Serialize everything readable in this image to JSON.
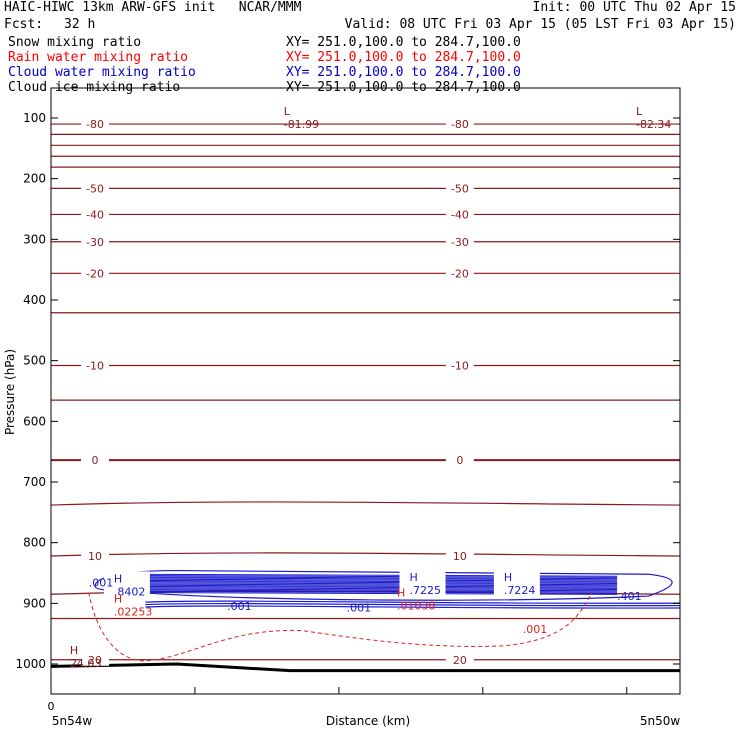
{
  "header": {
    "title_left": "HAIC-HIWC 13km ARW-GFS init   NCAR/MMM",
    "fcst_label": "Fcst:",
    "fcst_value": "32 h",
    "init": "Init: 00 UTC Thu 02 Apr 15",
    "valid": "Valid: 08 UTC Fri 03 Apr 15 (05 LST Fri 03 Apr 15)"
  },
  "fields": [
    {
      "name": "Snow mixing ratio",
      "xy": "XY= 251.0,100.0 to 284.7,100.0",
      "color": "#000000"
    },
    {
      "name": "Rain water mixing ratio",
      "xy": "XY= 251.0,100.0 to 284.7,100.0",
      "color": "#ff0000"
    },
    {
      "name": "Cloud water mixing ratio",
      "xy": "XY= 251.0,100.0 to 284.7,100.0",
      "color": "#0000c8"
    },
    {
      "name": "Cloud ice mixing ratio",
      "xy": "XY= 251.0,100.0 to 284.7,100.0",
      "color": "#000000"
    }
  ],
  "colors": {
    "temp": "#8b1a1a",
    "cloud": "#1a1acd",
    "rain": "#e02020",
    "ground": "#000000"
  },
  "chart_data": {
    "type": "line",
    "ylabel": "Pressure (hPa)",
    "xlabel": "Distance (km)",
    "x_start_label": "5n54w",
    "x_end_label": "5n50w",
    "x_zero_label": "0",
    "y_ticks": [
      100,
      200,
      300,
      400,
      500,
      600,
      700,
      800,
      900,
      1000
    ],
    "ylim": [
      1050,
      50
    ],
    "xlim": [
      0,
      1
    ],
    "y_scale": "linear",
    "grid": false,
    "isotherms": [
      {
        "label": "-80",
        "p": 110
      },
      {
        "label": "",
        "p": 127
      },
      {
        "label": "",
        "p": 145
      },
      {
        "label": "",
        "p": 163
      },
      {
        "label": "",
        "p": 181
      },
      {
        "label": "-50",
        "p": 216
      },
      {
        "label": "-40",
        "p": 259
      },
      {
        "label": "-30",
        "p": 304
      },
      {
        "label": "-20",
        "p": 356
      },
      {
        "label": "",
        "p": 421
      },
      {
        "label": "-10",
        "p": 508
      },
      {
        "label": "",
        "p": 565
      },
      {
        "label": "0",
        "p": 664
      },
      {
        "label": "",
        "p": 738
      },
      {
        "label": "10",
        "p": 822
      },
      {
        "label": "",
        "p": 885
      },
      {
        "label": "",
        "p": 925
      },
      {
        "label": "20",
        "p": 993
      }
    ],
    "extrema": [
      {
        "kind": "L",
        "value": "-81.99",
        "x": 0.37,
        "p": 102,
        "color": "temp"
      },
      {
        "kind": "L",
        "value": "-82.34",
        "x": 0.93,
        "p": 102,
        "color": "temp"
      },
      {
        "kind": "H",
        "value": ".8402",
        "x": 0.1,
        "p": 872,
        "color": "cloud"
      },
      {
        "kind": "H",
        "value": ".7225",
        "x": 0.57,
        "p": 870,
        "color": "cloud"
      },
      {
        "kind": "H",
        "value": ".7224",
        "x": 0.72,
        "p": 870,
        "color": "cloud"
      },
      {
        "kind": "H",
        "value": ".02253",
        "x": 0.1,
        "p": 905,
        "color": "rain"
      },
      {
        "kind": "H",
        "value": ".01038",
        "x": 0.55,
        "p": 895,
        "color": "rain"
      },
      {
        "kind": "H",
        "value": "24.03",
        "x": 0.03,
        "p": 990,
        "color": "temp"
      }
    ],
    "cloud_labels": [
      {
        "text": ".001",
        "x": 0.06,
        "p": 866
      },
      {
        "text": ".001",
        "x": 0.28,
        "p": 904
      },
      {
        "text": ".001",
        "x": 0.47,
        "p": 907
      },
      {
        "text": ".401",
        "x": 0.9,
        "p": 888
      }
    ],
    "rain_labels": [
      {
        "text": ".001",
        "x": 0.75,
        "p": 942
      }
    ]
  }
}
